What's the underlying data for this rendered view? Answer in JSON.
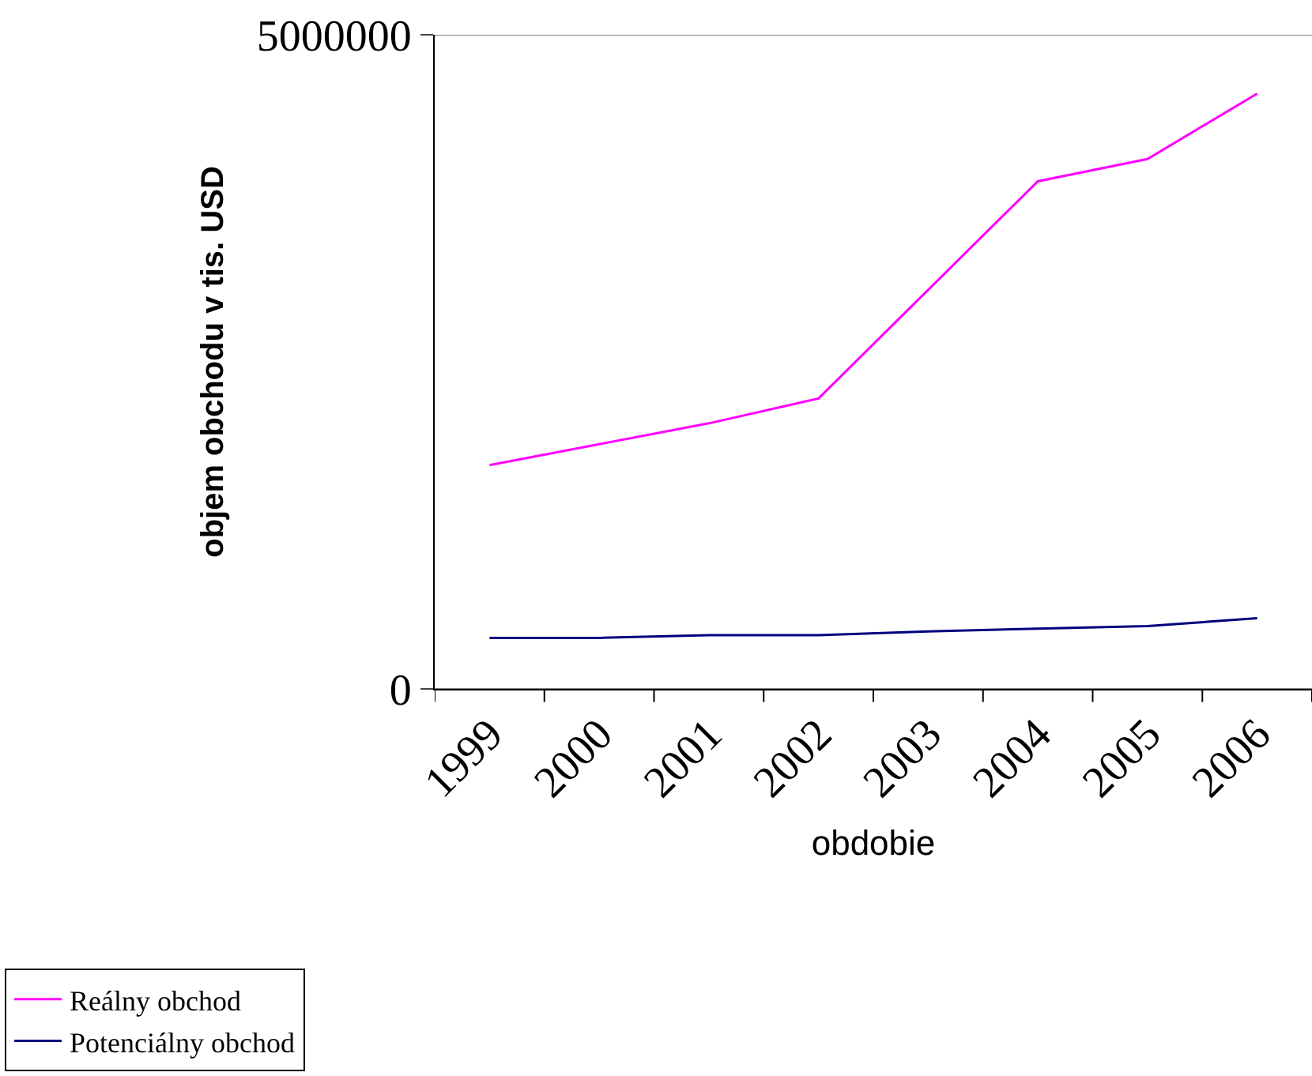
{
  "chart_data": {
    "type": "line",
    "xlabel": "obdobie",
    "ylabel": "objem obchodu v tis. USD",
    "categories": [
      "1999",
      "2000",
      "2001",
      "2002",
      "2003",
      "2004",
      "2005",
      "2006"
    ],
    "series": [
      {
        "name": "Reálny obchod",
        "color": "#ff00ff",
        "values": [
          1710000,
          1870000,
          2030000,
          2220000,
          3050000,
          3880000,
          4050000,
          4550000
        ]
      },
      {
        "name": "Potenciálny obchod",
        "color": "#000080",
        "values": [
          390000,
          390000,
          410000,
          410000,
          440000,
          460000,
          480000,
          540000
        ]
      }
    ],
    "ylim": [
      0,
      5000000
    ],
    "yticks": [
      0,
      5000000
    ],
    "grid": "y",
    "legend": "bottom left",
    "marker": "none",
    "line_style": "solid"
  }
}
